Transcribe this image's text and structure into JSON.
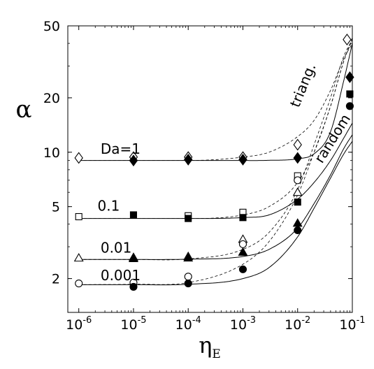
{
  "chart_data": {
    "type": "scatter",
    "title": "",
    "xlabel": "η",
    "xlabel_subscript": "E",
    "ylabel": "α",
    "x_scale": "log",
    "y_scale": "log",
    "xlim": [
      6.3e-07,
      0.1
    ],
    "ylim": [
      1.3,
      50
    ],
    "x_ticks": [
      {
        "base": "10",
        "exp": "-6",
        "value": 1e-06
      },
      {
        "base": "10",
        "exp": "-5",
        "value": 1e-05
      },
      {
        "base": "10",
        "exp": "-4",
        "value": 0.0001
      },
      {
        "base": "10",
        "exp": "-3",
        "value": 0.001
      },
      {
        "base": "10",
        "exp": "-2",
        "value": 0.01
      },
      {
        "base": "10",
        "exp": "-1",
        "value": 0.1
      }
    ],
    "y_ticks": [
      {
        "label": "2",
        "value": 2
      },
      {
        "label": "5",
        "value": 5
      },
      {
        "label": "10",
        "value": 10
      },
      {
        "label": "20",
        "value": 20
      },
      {
        "label": "50",
        "value": 50
      }
    ],
    "curve_labels": [
      {
        "text": "Da=1",
        "x": 2.5e-06,
        "y": 9.8
      },
      {
        "text": "0.1",
        "x": 2.2e-06,
        "y": 4.75
      },
      {
        "text": "0.01",
        "x": 2.5e-06,
        "y": 2.78
      },
      {
        "text": "0.001",
        "x": 2.5e-06,
        "y": 1.96
      }
    ],
    "annotations": [
      {
        "text": "triang.",
        "x": 0.0105,
        "y": 17.5,
        "rotate": -68
      },
      {
        "text": "random",
        "x": 0.028,
        "y": 8.6,
        "rotate": -58
      }
    ],
    "series": [
      {
        "name": "Da=1",
        "marker": "diamond",
        "fill": "open",
        "x": [
          1e-06,
          1e-05,
          0.0001,
          0.001,
          0.01,
          0.08
        ],
        "y": [
          9.3,
          9.4,
          9.4,
          9.4,
          11.0,
          42.0
        ]
      },
      {
        "name": "Da=1",
        "marker": "diamond",
        "fill": "filled",
        "x": [
          1e-05,
          0.0001,
          0.001,
          0.01,
          0.09
        ],
        "y": [
          9.0,
          9.1,
          9.1,
          9.3,
          26.0
        ]
      },
      {
        "name": "0.1",
        "marker": "square",
        "fill": "open",
        "x": [
          1e-06,
          0.0001,
          0.001,
          0.01
        ],
        "y": [
          4.4,
          4.45,
          4.65,
          7.4
        ]
      },
      {
        "name": "0.1",
        "marker": "square",
        "fill": "filled",
        "x": [
          1e-05,
          0.0001,
          0.001,
          0.01,
          0.09
        ],
        "y": [
          4.5,
          4.3,
          4.35,
          5.3,
          21.0
        ]
      },
      {
        "name": "0.01",
        "marker": "triangle",
        "fill": "open",
        "x": [
          1e-06,
          1e-05,
          0.0001,
          0.001,
          0.01
        ],
        "y": [
          2.6,
          2.62,
          2.65,
          3.3,
          6.0
        ]
      },
      {
        "name": "0.01",
        "marker": "triangle",
        "fill": "filled",
        "x": [
          1e-05,
          0.0001,
          0.001,
          0.01
        ],
        "y": [
          2.58,
          2.6,
          2.8,
          4.05
        ]
      },
      {
        "name": "0.001",
        "marker": "circle",
        "fill": "open",
        "x": [
          1e-06,
          1e-05,
          0.0001,
          0.001,
          0.01
        ],
        "y": [
          1.88,
          1.9,
          2.05,
          3.1,
          7.0
        ]
      },
      {
        "name": "0.001",
        "marker": "circle",
        "fill": "filled",
        "x": [
          1e-05,
          0.0001,
          0.001,
          0.01,
          0.09
        ],
        "y": [
          1.8,
          1.88,
          2.25,
          3.7,
          18.0
        ]
      }
    ],
    "curves": [
      {
        "style": "solid",
        "base": 9.0,
        "x0": 0.01,
        "x": [
          1e-06,
          1e-05,
          0.0001,
          0.001,
          0.003,
          0.01,
          0.02,
          0.04,
          0.07,
          0.1
        ],
        "y": [
          9.0,
          9.0,
          9.0,
          9.0,
          9.02,
          9.2,
          9.8,
          13.0,
          25.0,
          40.0
        ]
      },
      {
        "style": "dashed",
        "base": 9.0,
        "x0": 0.002,
        "x": [
          1e-06,
          1e-05,
          0.0001,
          0.001,
          0.003,
          0.01,
          0.02,
          0.04,
          0.07,
          0.1
        ],
        "y": [
          9.0,
          9.0,
          9.0,
          9.4,
          10.0,
          12.2,
          15.0,
          22.0,
          33.0,
          40.0
        ]
      },
      {
        "style": "solid",
        "base": 4.3,
        "x0": 0.01,
        "x": [
          1e-06,
          1e-05,
          0.0001,
          0.001,
          0.003,
          0.01,
          0.02,
          0.04,
          0.07,
          0.1
        ],
        "y": [
          4.3,
          4.3,
          4.3,
          4.35,
          4.5,
          5.5,
          6.8,
          9.0,
          12.0,
          14.5
        ]
      },
      {
        "style": "dashed",
        "base": 4.3,
        "x0": 0.002,
        "x": [
          1e-06,
          1e-05,
          0.0001,
          0.001,
          0.003,
          0.01,
          0.02,
          0.04,
          0.07,
          0.1
        ],
        "y": [
          4.3,
          4.3,
          4.3,
          4.5,
          5.0,
          6.8,
          10.0,
          18.0,
          32.0,
          42.0
        ]
      },
      {
        "style": "solid",
        "base": 2.55,
        "x0": 0.01,
        "x": [
          1e-06,
          1e-05,
          0.0001,
          0.001,
          0.003,
          0.01,
          0.02,
          0.04,
          0.07,
          0.1
        ],
        "y": [
          2.55,
          2.55,
          2.56,
          2.65,
          2.9,
          3.8,
          5.2,
          7.5,
          10.5,
          12.5
        ]
      },
      {
        "style": "dashed",
        "base": 2.55,
        "x0": 0.002,
        "x": [
          1e-06,
          1e-05,
          0.0001,
          0.001,
          0.003,
          0.01,
          0.02,
          0.04,
          0.07,
          0.1
        ],
        "y": [
          2.55,
          2.55,
          2.57,
          2.9,
          3.6,
          6.2,
          11.0,
          20.0,
          34.0,
          42.0
        ]
      },
      {
        "style": "solid",
        "base": 1.85,
        "x0": 0.01,
        "x": [
          1e-06,
          1e-05,
          0.0001,
          0.001,
          0.003,
          0.01,
          0.02,
          0.04,
          0.07,
          0.1
        ],
        "y": [
          1.85,
          1.85,
          1.86,
          2.0,
          2.3,
          3.4,
          4.9,
          7.2,
          9.8,
          11.5
        ]
      },
      {
        "style": "dashed",
        "base": 1.85,
        "x0": 0.002,
        "x": [
          1e-06,
          1e-05,
          0.0001,
          0.001,
          0.003,
          0.01,
          0.02,
          0.04,
          0.07,
          0.1
        ],
        "y": [
          1.85,
          1.86,
          1.9,
          2.4,
          3.2,
          5.8,
          10.0,
          18.0,
          32.0,
          43.0
        ]
      }
    ]
  }
}
